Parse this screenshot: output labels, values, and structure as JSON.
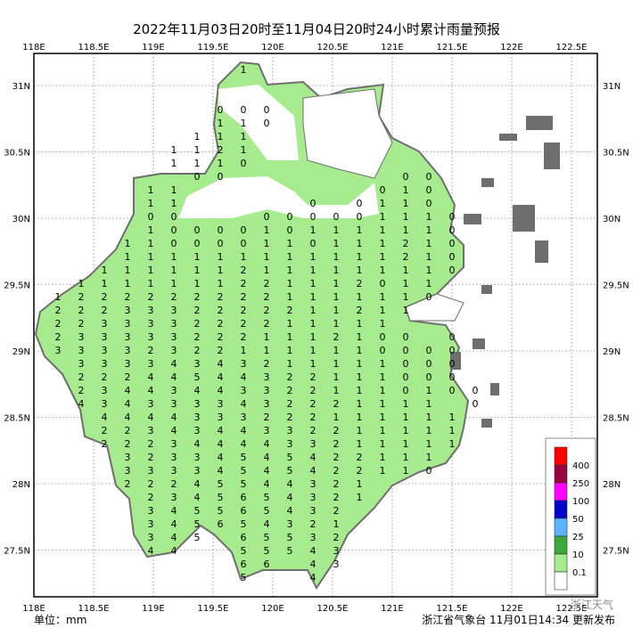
{
  "title": "2022年11月03日20时至11月04日20时24小时累计雨量预报",
  "lon_labels": [
    "118E",
    "118.5E",
    "119E",
    "119.5E",
    "120E",
    "120.5E",
    "121E",
    "121.5E",
    "122E",
    "122.5E"
  ],
  "lat_labels": [
    "31N",
    "30.5N",
    "30N",
    "29.5N",
    "29N",
    "28.5N",
    "28N",
    "27.5N"
  ],
  "unit": "单位：mm",
  "footer": "浙江省气象台 11月01日14:34 更新发布",
  "watermark": "浙江天气",
  "legend": {
    "colors": [
      "#ff0000",
      "#990040",
      "#ff00ff",
      "#0000cd",
      "#5ab4ff",
      "#3ca83c",
      "#a6ec8e",
      "#ffffff"
    ],
    "levels": [
      400,
      250,
      100,
      50,
      25,
      10,
      0.1
    ]
  },
  "grid": {
    "rows": [
      [
        null,
        null,
        null,
        null,
        null,
        null,
        null,
        null,
        1
      ],
      [],
      [],
      [
        null,
        null,
        null,
        null,
        null,
        null,
        null,
        0,
        0,
        0
      ],
      [
        null,
        null,
        null,
        null,
        null,
        null,
        null,
        1,
        1,
        0
      ],
      [
        null,
        null,
        null,
        null,
        null,
        null,
        1,
        1,
        1
      ],
      [
        null,
        null,
        null,
        null,
        null,
        1,
        1,
        2,
        1
      ],
      [
        null,
        null,
        null,
        null,
        null,
        1,
        1,
        1,
        0
      ],
      [
        null,
        null,
        null,
        null,
        null,
        null,
        0,
        0,
        null,
        null,
        null,
        null,
        null,
        null,
        null,
        0,
        0
      ],
      [
        null,
        null,
        null,
        null,
        1,
        1,
        null,
        null,
        null,
        null,
        null,
        null,
        null,
        null,
        0,
        1,
        0
      ],
      [
        null,
        null,
        null,
        null,
        1,
        1,
        null,
        null,
        null,
        null,
        null,
        0,
        null,
        0,
        1,
        1,
        0
      ],
      [
        null,
        null,
        null,
        null,
        0,
        0,
        null,
        null,
        null,
        0,
        0,
        0,
        0,
        0,
        1,
        1,
        1,
        0
      ],
      [
        null,
        null,
        null,
        null,
        1,
        0,
        0,
        0,
        0,
        1,
        0,
        1,
        1,
        1,
        1,
        1,
        1,
        0
      ],
      [
        null,
        null,
        null,
        1,
        1,
        0,
        0,
        0,
        0,
        1,
        1,
        0,
        1,
        1,
        1,
        2,
        1,
        0
      ],
      [
        null,
        null,
        null,
        1,
        1,
        1,
        1,
        1,
        1,
        1,
        1,
        1,
        1,
        1,
        1,
        2,
        1,
        0
      ],
      [
        null,
        null,
        1,
        1,
        1,
        1,
        1,
        1,
        2,
        1,
        1,
        1,
        1,
        1,
        1,
        1,
        1,
        0
      ],
      [
        null,
        1,
        1,
        1,
        1,
        1,
        1,
        1,
        2,
        2,
        1,
        1,
        1,
        2,
        0,
        1,
        1
      ],
      [
        1,
        2,
        2,
        2,
        2,
        2,
        2,
        2,
        2,
        2,
        1,
        1,
        1,
        1,
        1,
        1,
        0
      ],
      [
        2,
        2,
        2,
        3,
        3,
        3,
        2,
        2,
        2,
        2,
        2,
        1,
        1,
        2,
        1,
        1
      ],
      [
        2,
        2,
        3,
        3,
        3,
        3,
        2,
        2,
        2,
        2,
        1,
        1,
        1,
        1,
        1
      ],
      [
        2,
        3,
        3,
        3,
        3,
        3,
        2,
        2,
        2,
        1,
        1,
        1,
        2,
        1,
        0,
        0,
        null,
        0
      ],
      [
        3,
        3,
        3,
        3,
        2,
        3,
        2,
        2,
        1,
        1,
        1,
        1,
        1,
        1,
        0,
        0,
        0,
        0
      ],
      [
        null,
        3,
        3,
        3,
        3,
        4,
        3,
        4,
        3,
        2,
        1,
        1,
        1,
        1,
        1,
        0,
        0,
        0
      ],
      [
        null,
        2,
        2,
        2,
        4,
        4,
        5,
        4,
        4,
        3,
        2,
        2,
        1,
        1,
        1,
        0,
        0,
        0
      ],
      [
        null,
        2,
        3,
        4,
        4,
        3,
        4,
        4,
        3,
        3,
        2,
        2,
        1,
        1,
        1,
        0,
        1,
        0,
        0
      ],
      [
        null,
        4,
        3,
        4,
        3,
        3,
        3,
        3,
        4,
        3,
        2,
        2,
        2,
        1,
        1,
        1,
        1,
        null,
        0
      ],
      [
        null,
        null,
        4,
        4,
        4,
        4,
        3,
        3,
        3,
        2,
        2,
        2,
        1,
        1,
        1,
        1,
        1,
        1
      ],
      [
        null,
        null,
        2,
        2,
        3,
        4,
        3,
        4,
        4,
        3,
        3,
        2,
        2,
        1,
        1,
        1,
        1,
        1
      ],
      [
        null,
        null,
        2,
        2,
        2,
        3,
        4,
        4,
        4,
        4,
        3,
        3,
        2,
        1,
        1,
        1,
        1,
        1
      ],
      [
        null,
        null,
        null,
        3,
        2,
        3,
        3,
        4,
        5,
        4,
        5,
        4,
        2,
        2,
        1,
        1,
        1
      ],
      [
        null,
        null,
        null,
        3,
        3,
        3,
        3,
        4,
        5,
        4,
        5,
        4,
        2,
        2,
        1,
        1,
        0
      ],
      [
        null,
        null,
        null,
        2,
        2,
        2,
        4,
        5,
        5,
        4,
        4,
        3,
        2,
        1
      ],
      [
        null,
        null,
        null,
        null,
        2,
        3,
        4,
        5,
        6,
        5,
        4,
        3,
        2,
        1
      ],
      [
        null,
        null,
        null,
        null,
        3,
        4,
        5,
        5,
        6,
        5,
        4,
        3,
        2
      ],
      [
        null,
        null,
        null,
        null,
        3,
        4,
        5,
        6,
        5,
        4,
        3,
        2,
        1
      ],
      [
        null,
        null,
        null,
        null,
        3,
        4,
        5,
        null,
        6,
        5,
        5,
        3,
        2
      ],
      [
        null,
        null,
        null,
        null,
        4,
        4,
        null,
        null,
        5,
        5,
        5,
        4,
        3
      ],
      [
        null,
        null,
        null,
        null,
        null,
        null,
        null,
        null,
        6,
        6,
        null,
        4,
        3
      ],
      [
        null,
        null,
        null,
        null,
        null,
        null,
        null,
        null,
        5,
        null,
        null,
        4
      ]
    ]
  }
}
